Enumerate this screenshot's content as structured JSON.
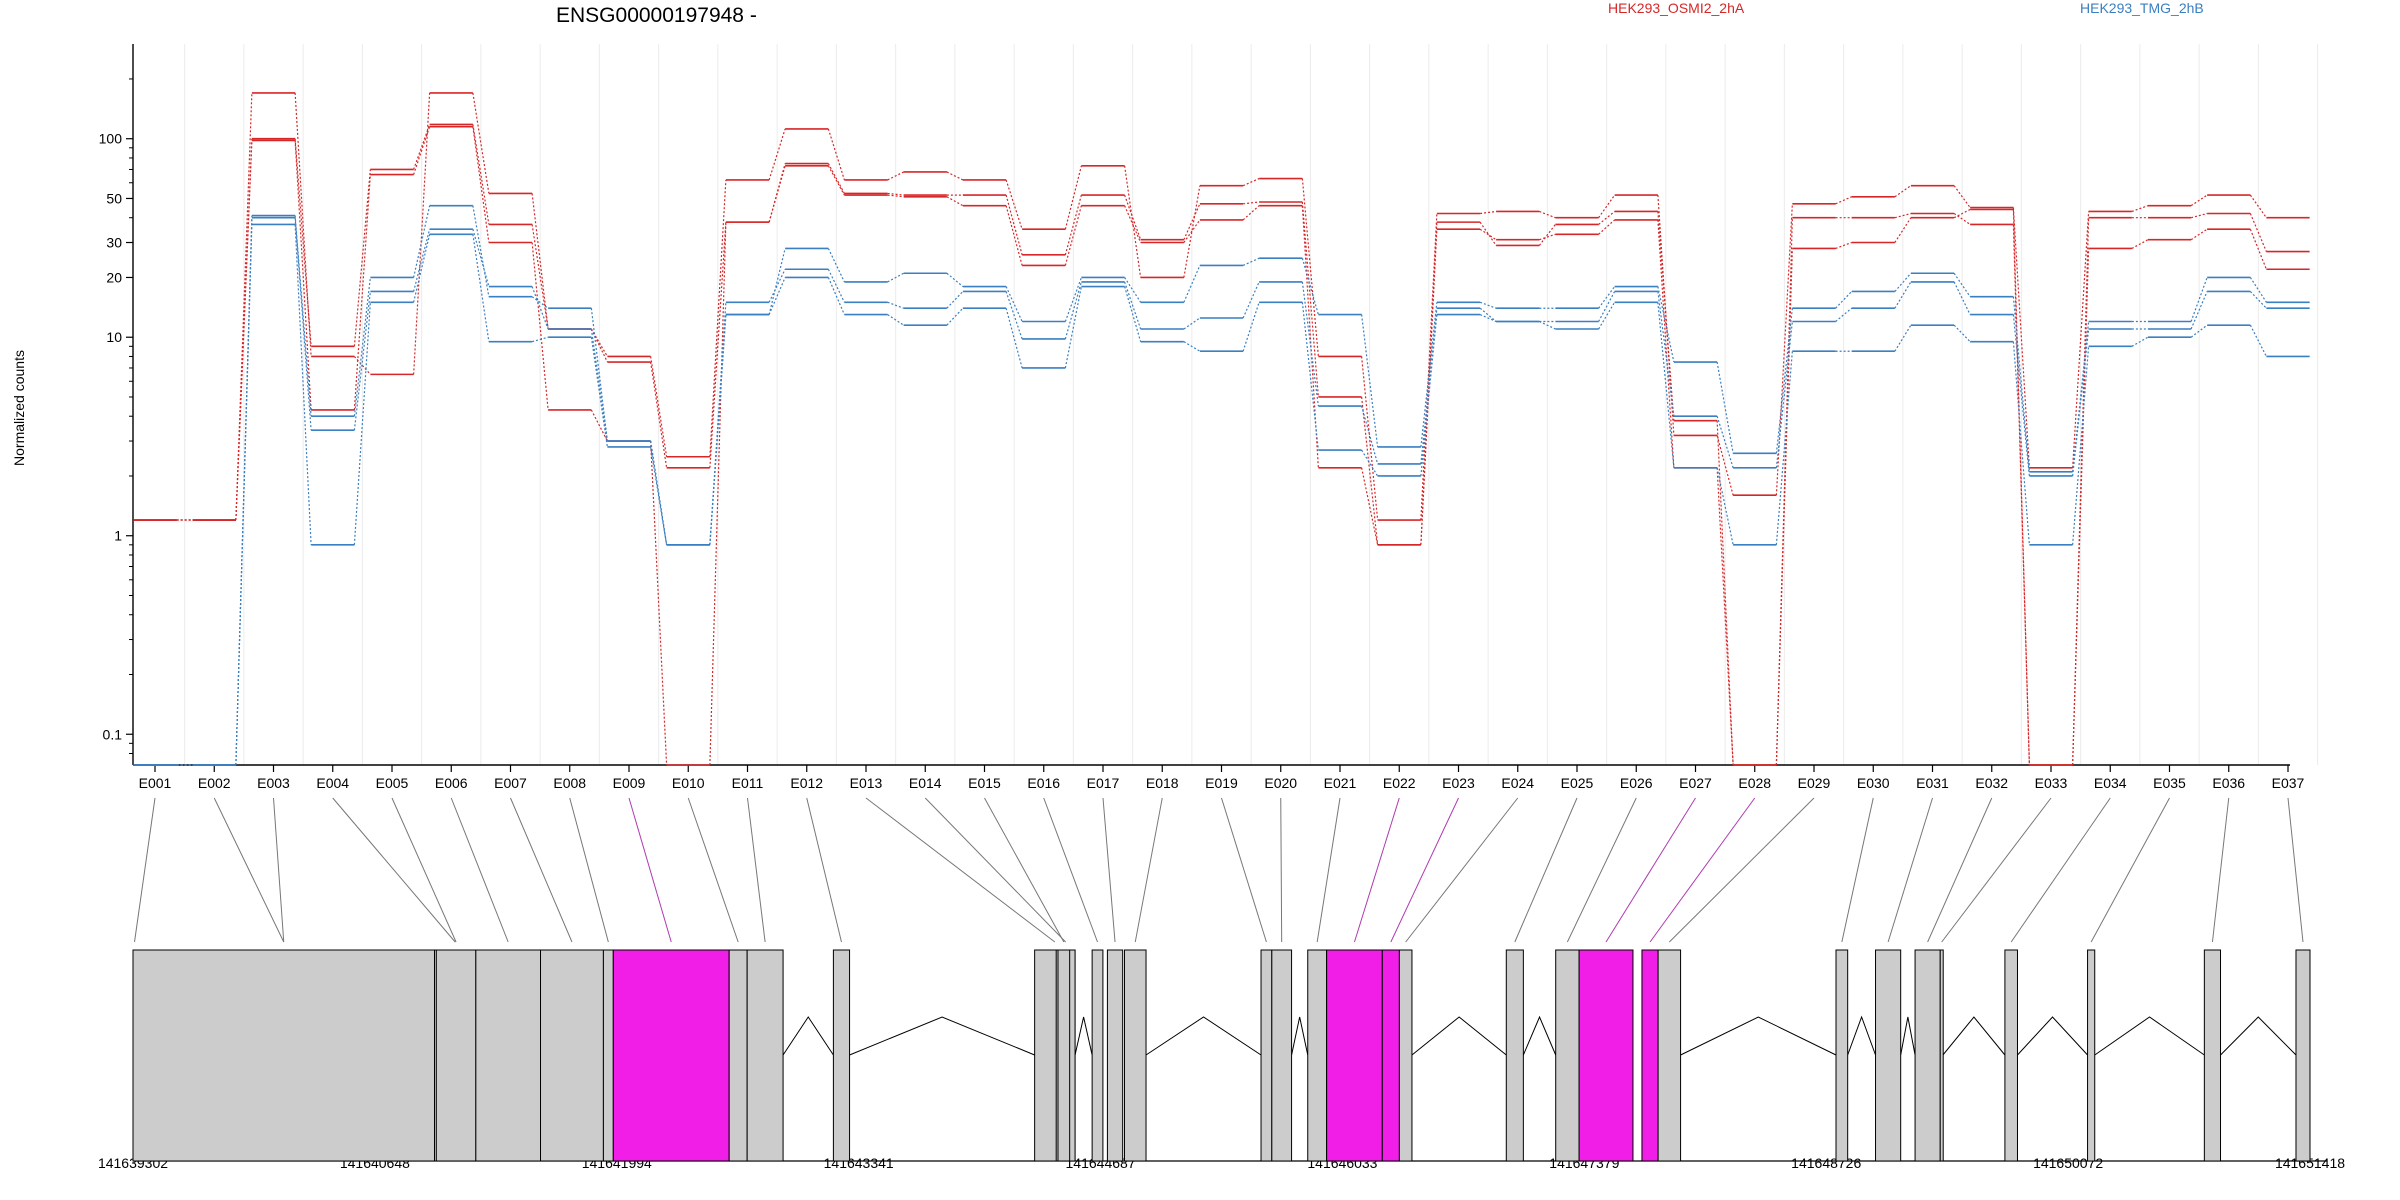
{
  "chart_data": {
    "type": "line",
    "title": "ENSG00000197948 -",
    "xlabel": "",
    "ylabel": "Normalized counts",
    "yscale": "log",
    "ylim": [
      0.07,
      300
    ],
    "yticks": [
      0.1,
      1,
      10,
      20,
      30,
      50,
      100
    ],
    "ytick_labels": [
      "0.1",
      "1",
      "10",
      "20",
      "30",
      "50",
      "100"
    ],
    "categories": [
      "E001",
      "E002",
      "E003",
      "E004",
      "E005",
      "E006",
      "E007",
      "E008",
      "E009",
      "E010",
      "E011",
      "E012",
      "E013",
      "E014",
      "E015",
      "E016",
      "E017",
      "E018",
      "E019",
      "E020",
      "E021",
      "E022",
      "E023",
      "E024",
      "E025",
      "E026",
      "E027",
      "E028",
      "E029",
      "E030",
      "E031",
      "E032",
      "E033",
      "E034",
      "E035",
      "E036",
      "E037"
    ],
    "legend": [
      {
        "name": "HEK293_OSMI2_2hA",
        "color": "#d62728"
      },
      {
        "name": "HEK293_TMG_2hB",
        "color": "#3a7fc1"
      }
    ],
    "series": [
      {
        "group": 0,
        "values": [
          1.2,
          1.2,
          170,
          8,
          6.5,
          170,
          53,
          11,
          8,
          2.5,
          62,
          112,
          62,
          68,
          62,
          35,
          73,
          20,
          58,
          63,
          8,
          1.2,
          42,
          43,
          40,
          52,
          3.2,
          1.6,
          47,
          51,
          58,
          45,
          2.2,
          43,
          46,
          52,
          40
        ]
      },
      {
        "group": 0,
        "values": [
          1.2,
          1.2,
          100,
          9,
          70,
          118,
          37,
          11,
          7.5,
          2.2,
          38,
          75,
          53,
          52,
          52,
          26,
          52,
          31,
          47,
          48,
          5,
          0.9,
          38,
          29,
          37,
          43,
          3.8,
          0.07,
          40,
          40,
          42,
          37,
          0.07,
          40,
          40,
          42,
          27
        ]
      },
      {
        "group": 0,
        "values": [
          1.2,
          1.2,
          98,
          4.3,
          66,
          115,
          30,
          4.3,
          3,
          0.07,
          38,
          73,
          52,
          51,
          46,
          23,
          46,
          30,
          39,
          46,
          2.2,
          0.9,
          35,
          31,
          33,
          39,
          2.2,
          0.07,
          28,
          30,
          40,
          44,
          0.07,
          28,
          31,
          35,
          22
        ]
      },
      {
        "group": 1,
        "values": [
          0.07,
          0.07,
          41,
          4,
          20,
          46,
          16,
          14,
          3,
          0.9,
          13,
          28,
          19,
          21,
          18,
          12,
          20,
          15,
          23,
          25,
          13,
          2.8,
          15,
          14,
          14,
          18,
          7.5,
          2.6,
          14,
          17,
          21,
          16,
          2.1,
          12,
          12,
          20,
          15
        ]
      },
      {
        "group": 1,
        "values": [
          0.07,
          0.07,
          40,
          3.4,
          17,
          35,
          18,
          11,
          3,
          0.9,
          15,
          22,
          15,
          14,
          17,
          9.8,
          19,
          11,
          12.5,
          19,
          4.5,
          2.3,
          14,
          12,
          12,
          17,
          4,
          2.2,
          12,
          14,
          19,
          13,
          2,
          11,
          11,
          17,
          14
        ]
      },
      {
        "group": 1,
        "values": [
          0.07,
          0.07,
          37,
          0.9,
          15,
          33,
          9.5,
          10,
          2.8,
          0.9,
          13,
          20,
          13,
          11.5,
          14,
          7,
          18,
          9.5,
          8.5,
          15,
          2.7,
          2,
          13,
          12,
          11,
          15,
          2.2,
          0.9,
          8.5,
          8.5,
          11.5,
          9.5,
          0.9,
          9,
          10,
          11.5,
          8
        ]
      }
    ],
    "exon_model": {
      "coordinate_labels": [
        "141639302",
        "141640648",
        "141641994",
        "141643341",
        "141644687",
        "141646033",
        "141647379",
        "141648726",
        "141650072",
        "141651418"
      ],
      "exons": [
        {
          "id": "E001",
          "start": 141639302,
          "end": 141639302,
          "highlight": false
        },
        {
          "id": "E002",
          "start": 141639302,
          "end": 141640980,
          "highlight": false
        },
        {
          "id": "E003",
          "start": 141639302,
          "end": 141640980,
          "highlight": false
        },
        {
          "id": "E004",
          "start": 141640980,
          "end": 141641210,
          "highlight": false
        },
        {
          "id": "E005",
          "start": 141640990,
          "end": 141641210,
          "highlight": false
        },
        {
          "id": "E006",
          "start": 141641210,
          "end": 141641570,
          "highlight": false
        },
        {
          "id": "E007",
          "start": 141641570,
          "end": 141641920,
          "highlight": false
        },
        {
          "id": "E008",
          "start": 141641920,
          "end": 141641975,
          "highlight": false
        },
        {
          "id": "E009",
          "start": 141641975,
          "end": 141642620,
          "highlight": true
        },
        {
          "id": "E010",
          "start": 141642620,
          "end": 141642720,
          "highlight": false
        },
        {
          "id": "E011",
          "start": 141642720,
          "end": 141642920,
          "highlight": false
        },
        {
          "id": "E012",
          "start": 141643200,
          "end": 141643290,
          "highlight": false
        },
        {
          "id": "E013",
          "start": 141644320,
          "end": 141644545,
          "highlight": false
        },
        {
          "id": "E014",
          "start": 141644440,
          "end": 141644545,
          "highlight": false
        },
        {
          "id": "E015",
          "start": 141644450,
          "end": 141644515,
          "highlight": false
        },
        {
          "id": "E016",
          "start": 141644640,
          "end": 141644700,
          "highlight": false
        },
        {
          "id": "E017",
          "start": 141644725,
          "end": 141644810,
          "highlight": false
        },
        {
          "id": "E018",
          "start": 141644820,
          "end": 141644940,
          "highlight": false
        },
        {
          "id": "E019",
          "start": 141645580,
          "end": 141645640,
          "highlight": false
        },
        {
          "id": "E020",
          "start": 141645640,
          "end": 141645750,
          "highlight": false
        },
        {
          "id": "E021",
          "start": 141645840,
          "end": 141645945,
          "highlight": false
        },
        {
          "id": "E022",
          "start": 141645945,
          "end": 141646255,
          "highlight": true
        },
        {
          "id": "E023",
          "start": 141646255,
          "end": 141646350,
          "highlight": true
        },
        {
          "id": "E024",
          "start": 141646350,
          "end": 141646420,
          "highlight": false
        },
        {
          "id": "E025",
          "start": 141646945,
          "end": 141647040,
          "highlight": false
        },
        {
          "id": "E026",
          "start": 141647220,
          "end": 141647350,
          "highlight": false
        },
        {
          "id": "E027",
          "start": 141647350,
          "end": 141647650,
          "highlight": true
        },
        {
          "id": "E028",
          "start": 141647700,
          "end": 141647790,
          "highlight": true
        },
        {
          "id": "E029",
          "start": 141647790,
          "end": 141647915,
          "highlight": false
        },
        {
          "id": "E030",
          "start": 141648780,
          "end": 141648845,
          "highlight": false
        },
        {
          "id": "E031",
          "start": 141649000,
          "end": 141649140,
          "highlight": false
        },
        {
          "id": "E032",
          "start": 141649220,
          "end": 141649360,
          "highlight": false
        },
        {
          "id": "E033",
          "start": 141649360,
          "end": 141649375,
          "highlight": false
        },
        {
          "id": "E034",
          "start": 141649720,
          "end": 141649790,
          "highlight": false
        },
        {
          "id": "E035",
          "start": 141650180,
          "end": 141650220,
          "highlight": false
        },
        {
          "id": "E036",
          "start": 141650830,
          "end": 141650920,
          "highlight": false
        },
        {
          "id": "E037",
          "start": 141651340,
          "end": 141651418,
          "highlight": false
        }
      ]
    }
  }
}
